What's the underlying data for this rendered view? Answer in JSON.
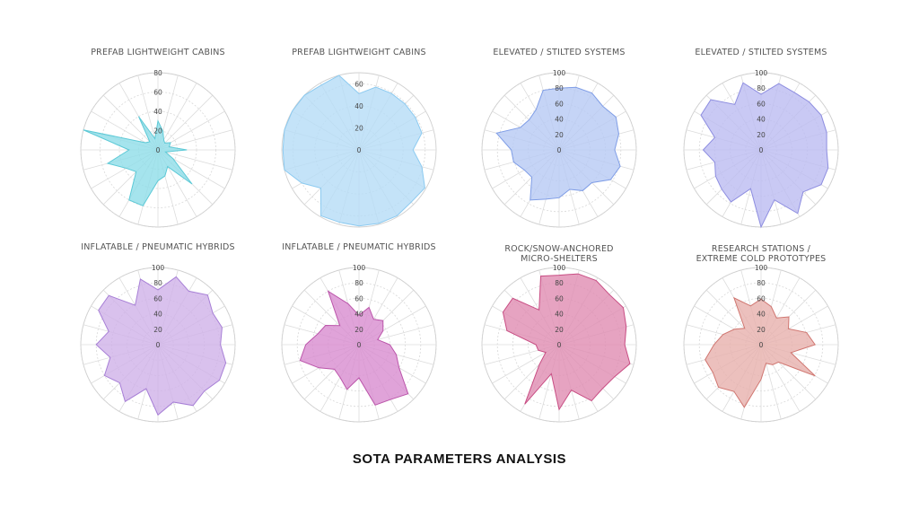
{
  "main_title": "SOTA PARAMETERS ANALYSIS",
  "chart_data": [
    {
      "type": "radar",
      "title": "PREFAB LIGHTWEIGHT CABINS",
      "rmax": 80,
      "ticks": [
        0,
        20,
        40,
        60,
        80
      ],
      "fill": "#8fdde8",
      "stroke": "#5cc9d6",
      "values": [
        30,
        20,
        12,
        10,
        15,
        12,
        30,
        8,
        18,
        50,
        20,
        28,
        32,
        60,
        60,
        32,
        38,
        54,
        30,
        80,
        15,
        12,
        40,
        12
      ]
    },
    {
      "type": "radar",
      "title": "PREFAB LIGHTWEIGHT CABINS",
      "rmax": 70,
      "ticks": [
        0,
        20,
        40,
        60
      ],
      "fill": "#b5dcf6",
      "stroke": "#8ccaf0",
      "values": [
        51,
        59,
        59,
        59,
        59,
        59,
        49,
        59,
        69,
        67,
        69,
        69,
        69,
        68,
        69,
        49,
        60,
        70,
        69,
        70,
        70,
        70,
        68,
        70
      ]
    },
    {
      "type": "radar",
      "title": "ELEVATED / STILTED SYSTEMS",
      "rmax": 100,
      "ticks": [
        0,
        20,
        40,
        60,
        80,
        100
      ],
      "fill": "#b7c9f4",
      "stroke": "#7f9de6",
      "values": [
        80,
        84,
        85,
        80,
        85,
        80,
        72,
        82,
        77,
        60,
        61,
        53,
        62,
        66,
        75,
        50,
        52,
        61,
        62,
        84,
        58,
        55,
        60,
        80
      ]
    },
    {
      "type": "radar",
      "title": "ELEVATED / STILTED SYSTEMS",
      "rmax": 100,
      "ticks": [
        0,
        20,
        40,
        60,
        80,
        100
      ],
      "fill": "#bcbcf1",
      "stroke": "#8d8de0",
      "values": [
        72,
        89,
        86,
        88,
        90,
        88,
        85,
        90,
        90,
        77,
        95,
        67,
        100,
        52,
        78,
        72,
        68,
        62,
        75,
        62,
        90,
        92,
        68,
        90
      ]
    },
    {
      "type": "radar",
      "title": "INFLATABLE / PNEUMATIC HYBRIDS",
      "rmax": 100,
      "ticks": [
        0,
        20,
        40,
        60,
        80,
        100
      ],
      "fill": "#cfb2e8",
      "stroke": "#a77fd6",
      "values": [
        71,
        91,
        80,
        91,
        82,
        86,
        81,
        91,
        92,
        85,
        91,
        77,
        91,
        59,
        85,
        70,
        80,
        64,
        80,
        66,
        89,
        90,
        59,
        88
      ]
    },
    {
      "type": "radar",
      "title": "INFLATABLE / PNEUMATIC HYBRIDS",
      "rmax": 100,
      "ticks": [
        0,
        20,
        40,
        60,
        80,
        100
      ],
      "fill": "#d88ccf",
      "stroke": "#bb55aa",
      "values": [
        38,
        50,
        38,
        44,
        36,
        25,
        40,
        50,
        60,
        90,
        82,
        81,
        43,
        60,
        49,
        45,
        60,
        79,
        69,
        55,
        50,
        35,
        80,
        55
      ]
    },
    {
      "type": "radar",
      "title": "ROCK/SNOW-ANCHORED\nMICRO-SHELTERS",
      "rmax": 100,
      "ticks": [
        0,
        20,
        40,
        60,
        80,
        100
      ],
      "fill": "#e08cb2",
      "stroke": "#c84d83",
      "values": [
        90,
        95,
        96,
        92,
        96,
        90,
        85,
        95,
        83,
        80,
        84,
        61,
        84,
        39,
        89,
        36,
        20,
        28,
        30,
        70,
        84,
        85,
        52,
        92
      ]
    },
    {
      "type": "radar",
      "title": "RESEARCH STATIONS /\nEXTREME COLD PROTOTYPES",
      "rmax": 100,
      "ticks": [
        0,
        20,
        40,
        60,
        80,
        100
      ],
      "fill": "#e7b0ad",
      "stroke": "#d07670",
      "values": [
        59,
        51,
        40,
        51,
        41,
        61,
        70,
        40,
        81,
        32,
        30,
        25,
        45,
        84,
        70,
        78,
        72,
        75,
        61,
        51,
        40,
        30,
        70,
        52
      ]
    }
  ]
}
